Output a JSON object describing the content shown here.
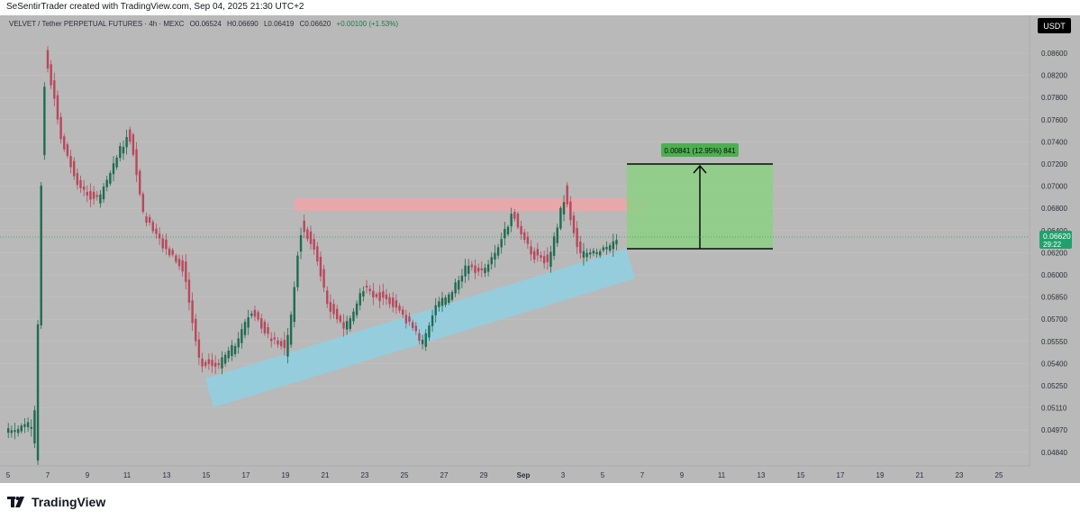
{
  "header": {
    "note": "SeSentirTrader created with TradingView.com, Sep 04, 2025 21:30 UTC+2"
  },
  "symbol": {
    "name": "VELVET / Tether PERPETUAL FUTURES · 4h · MEXC",
    "open": "O0.06524",
    "high": "H0.06690",
    "low": "L0.06419",
    "close": "C0.06620",
    "change": "+0.00100 (+1.53%)"
  },
  "currency_button": "USDT",
  "price_axis": {
    "labels": [
      "0.08600",
      "0.08200",
      "0.07800",
      "0.07600",
      "0.07400",
      "0.07200",
      "0.07000",
      "0.06800",
      "0.06400",
      "0.06200",
      "0.06000",
      "0.05850",
      "0.05700",
      "0.05550",
      "0.05400",
      "0.05250",
      "0.05110",
      "0.04970",
      "0.04840"
    ],
    "current_price": "0.06620",
    "countdown": "29:22"
  },
  "time_axis": {
    "labels": [
      "5",
      "7",
      "9",
      "11",
      "13",
      "15",
      "17",
      "19",
      "21",
      "23",
      "25",
      "27",
      "29",
      "Sep",
      "3",
      "5",
      "7",
      "9",
      "11",
      "13",
      "15",
      "17",
      "19",
      "21",
      "23",
      "25"
    ]
  },
  "measure_tool": {
    "label": "0.00841 (12.95%) 841"
  },
  "colors": {
    "up": "#1f6b50",
    "down": "#b9475a",
    "support_channel": "#8fd0e2",
    "resistance_zone": "#f0a3a8",
    "target_zone": "#8fcf87",
    "current_price_badge": "#22a06b"
  },
  "branding": {
    "logo_text": "TradingView"
  }
}
